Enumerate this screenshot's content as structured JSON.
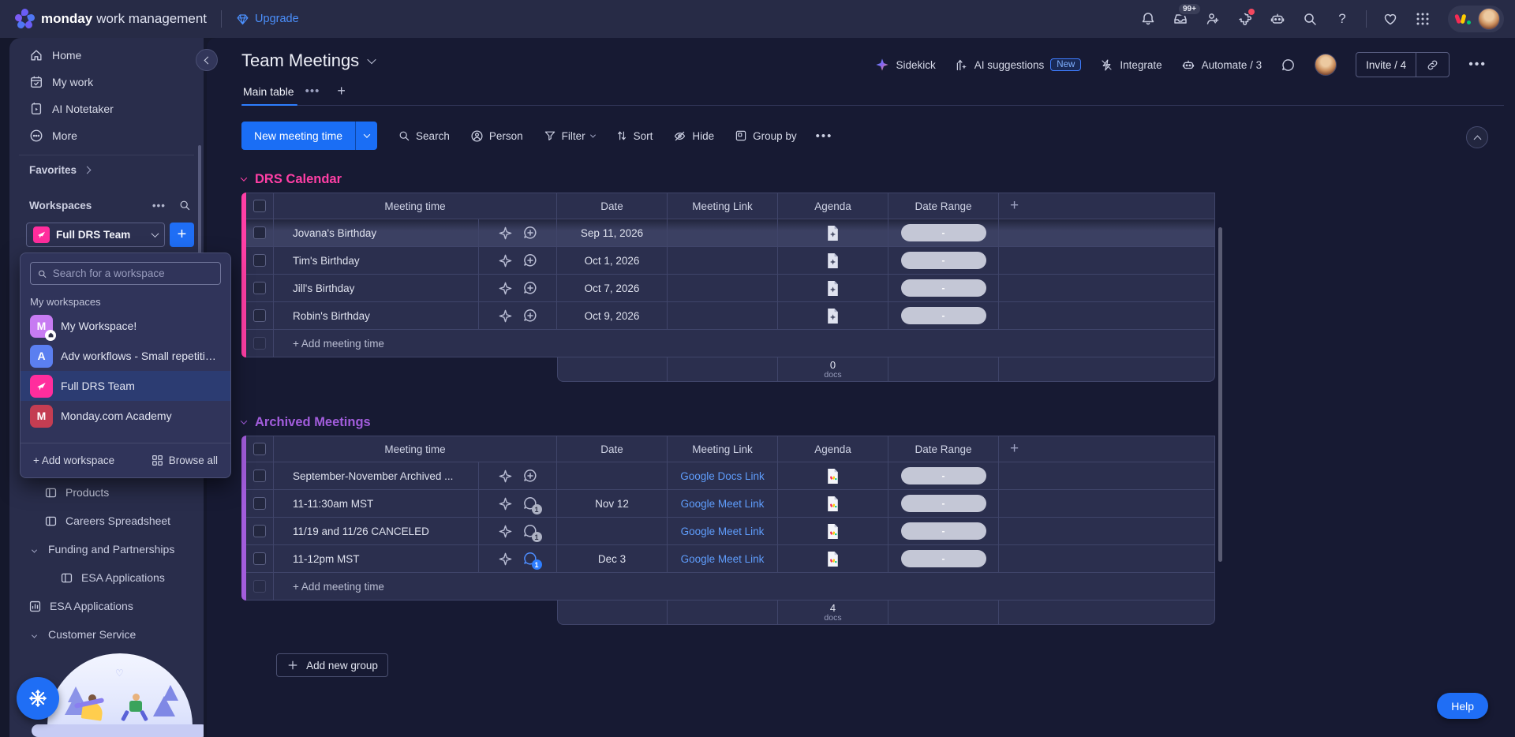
{
  "colors": {
    "accent_blue": "#1f6ef5",
    "group_pink": "#ff3fa5",
    "group_purple": "#a25ddc",
    "link_blue": "#5f9dfc"
  },
  "topbar": {
    "product_bold": "monday",
    "product_light": "work management",
    "upgrade_label": "Upgrade",
    "inbox_badge": "99+"
  },
  "sidebar": {
    "nav": [
      {
        "label": "Home",
        "icon": "home-icon"
      },
      {
        "label": "My work",
        "icon": "my-work-icon"
      },
      {
        "label": "AI Notetaker",
        "icon": "ai-notetaker-icon"
      },
      {
        "label": "More",
        "icon": "more-icon"
      }
    ],
    "favorites_label": "Favorites",
    "workspaces_label": "Workspaces",
    "selector_name": "Full DRS Team",
    "dropdown": {
      "search_placeholder": "Search for a workspace",
      "section_label": "My workspaces",
      "items": [
        {
          "name": "My Workspace!",
          "initial": "M",
          "color": "#c77bf2",
          "home_badge": true,
          "selected": false
        },
        {
          "name": "Adv workflows - Small repetitive...",
          "initial": "A",
          "color": "#5b7ff0",
          "selected": false
        },
        {
          "name": "Full DRS Team",
          "initial": "",
          "color": "#ff2d9d",
          "bird": true,
          "selected": true
        },
        {
          "name": "Monday.com Academy",
          "initial": "M",
          "color": "#c43d52",
          "selected": false
        }
      ],
      "add_label": "+ Add workspace",
      "browse_label": "Browse all"
    },
    "boards": [
      {
        "label": "Products",
        "icon": "board",
        "indent": 1
      },
      {
        "label": "Careers Spreadsheet",
        "icon": "board",
        "indent": 1
      },
      {
        "label": "Funding and Partnerships",
        "icon": "folder",
        "indent": 0
      },
      {
        "label": "ESA Applications",
        "icon": "board",
        "indent": 2
      },
      {
        "label": "ESA Applications",
        "icon": "dashboard",
        "indent": 0
      },
      {
        "label": "Customer Service",
        "icon": "folder",
        "indent": 0
      }
    ]
  },
  "board_header": {
    "title": "Team Meetings",
    "sidekick": "Sidekick",
    "ai_suggestions": "AI suggestions",
    "new_badge": "New",
    "integrate": "Integrate",
    "automate": "Automate / 3",
    "invite": "Invite / 4"
  },
  "tabs": {
    "active": "Main table"
  },
  "toolbar": {
    "new_item": "New meeting time",
    "search": "Search",
    "person": "Person",
    "filter": "Filter",
    "sort": "Sort",
    "hide": "Hide",
    "group_by": "Group by"
  },
  "columns": [
    "Meeting time",
    "Date",
    "Meeting Link",
    "Agenda",
    "Date Range"
  ],
  "groups": [
    {
      "title": "DRS Calendar",
      "color": "#ff3fa5",
      "rows": [
        {
          "name": "Jovana's Birthday",
          "date": "Sep 11, 2026",
          "link": "",
          "agenda": "gray",
          "range": "-",
          "bubble": "plus",
          "badge": "",
          "highlight": true
        },
        {
          "name": "Tim's Birthday",
          "date": "Oct 1, 2026",
          "link": "",
          "agenda": "gray",
          "range": "-",
          "bubble": "plus",
          "badge": "",
          "highlight": false
        },
        {
          "name": "Jill's Birthday",
          "date": "Oct 7, 2026",
          "link": "",
          "agenda": "gray",
          "range": "-",
          "bubble": "plus",
          "badge": "",
          "highlight": false
        },
        {
          "name": "Robin's Birthday",
          "date": "Oct 9, 2026",
          "link": "",
          "agenda": "gray",
          "range": "-",
          "bubble": "plus",
          "badge": "",
          "highlight": false
        }
      ],
      "add_label": "+ Add meeting time",
      "footer_count": "0",
      "footer_unit": "docs"
    },
    {
      "title": "Archived Meetings",
      "color": "#a25ddc",
      "rows": [
        {
          "name": "September-November Archived ...",
          "date": "",
          "link": "Google Docs Link",
          "agenda": "color",
          "range": "-",
          "bubble": "plus",
          "badge": "",
          "highlight": false
        },
        {
          "name": "11-11:30am MST",
          "date": "Nov 12",
          "link": "Google Meet Link",
          "agenda": "color",
          "range": "-",
          "bubble": "badge-gray",
          "badge": "1",
          "highlight": false
        },
        {
          "name": "11/19 and 11/26 CANCELED",
          "date": "",
          "link": "Google Meet Link",
          "agenda": "color",
          "range": "-",
          "bubble": "badge-gray",
          "badge": "1",
          "highlight": false
        },
        {
          "name": "11-12pm MST",
          "date": "Dec 3",
          "link": "Google Meet Link",
          "agenda": "color",
          "range": "-",
          "bubble": "badge-blue",
          "badge": "1",
          "highlight": false
        }
      ],
      "add_label": "+ Add meeting time",
      "footer_count": "4",
      "footer_unit": "docs"
    }
  ],
  "footer_buttons": {
    "add_group": "Add new group",
    "help": "Help"
  }
}
